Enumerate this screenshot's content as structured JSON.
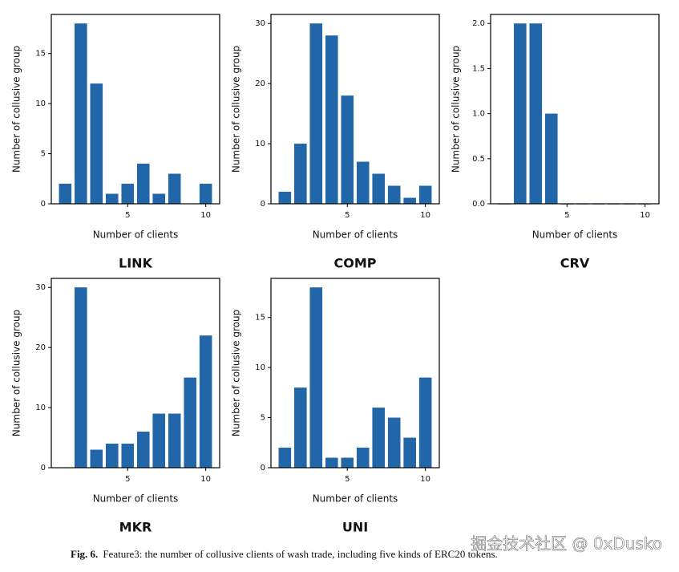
{
  "chart_data": [
    {
      "type": "bar",
      "title": "LINK",
      "xlabel": "Number of clients",
      "ylabel": "Number of collusive group",
      "color": "#2066a8",
      "x": [
        1,
        2,
        3,
        4,
        5,
        6,
        7,
        8,
        10
      ],
      "values": [
        2,
        18,
        12,
        1,
        2,
        4,
        1,
        3,
        2
      ],
      "xlim": [
        0.11,
        10.89
      ],
      "xticks": [
        5,
        10
      ],
      "ylim": [
        0,
        18.9
      ],
      "yticks": [
        0,
        5,
        10,
        15
      ]
    },
    {
      "type": "bar",
      "title": "COMP",
      "xlabel": "Number of clients",
      "ylabel": "Number of collusive group",
      "color": "#2066a8",
      "x": [
        1,
        2,
        3,
        4,
        5,
        6,
        7,
        8,
        9,
        10
      ],
      "values": [
        2,
        10,
        30,
        28,
        18,
        7,
        5,
        3,
        1,
        3
      ],
      "xlim": [
        0.11,
        10.89
      ],
      "xticks": [
        5,
        10
      ],
      "ylim": [
        0,
        31.5
      ],
      "yticks": [
        0,
        10,
        20,
        30
      ]
    },
    {
      "type": "bar",
      "title": "CRV",
      "xlabel": "Number of clients",
      "ylabel": "Number of collusive group",
      "color": "#2066a8",
      "x": [
        1,
        2,
        3,
        4,
        5,
        6,
        7,
        8,
        9,
        10
      ],
      "values": [
        0,
        2,
        2,
        1,
        0,
        0,
        0,
        0,
        0,
        0
      ],
      "xlim": [
        0.11,
        10.89
      ],
      "xticks": [
        5,
        10
      ],
      "ylim": [
        0,
        2.1
      ],
      "yticks": [
        {
          "value": 0,
          "label": "0.0"
        },
        {
          "value": 0.5,
          "label": "0.5"
        },
        {
          "value": 1,
          "label": "1.0"
        },
        {
          "value": 1.5,
          "label": "1.5"
        },
        {
          "value": 2,
          "label": "2.0"
        }
      ]
    },
    {
      "type": "bar",
      "title": "MKR",
      "xlabel": "Number of clients",
      "ylabel": "Number of collusive group",
      "color": "#2066a8",
      "x": [
        2,
        3,
        4,
        5,
        6,
        7,
        8,
        9,
        10
      ],
      "values": [
        30,
        3,
        4,
        4,
        6,
        9,
        9,
        15,
        22
      ],
      "xlim": [
        0.11,
        10.89
      ],
      "xticks": [
        5,
        10
      ],
      "ylim": [
        0,
        31.5
      ],
      "yticks": [
        0,
        10,
        20,
        30
      ]
    },
    {
      "type": "bar",
      "title": "UNI",
      "xlabel": "Number of clients",
      "ylabel": "Number of collusive group",
      "color": "#2066a8",
      "x": [
        1,
        2,
        3,
        4,
        5,
        6,
        7,
        8,
        9,
        10
      ],
      "values": [
        2,
        8,
        18,
        1,
        1,
        2,
        6,
        5,
        3,
        9
      ],
      "xlim": [
        0.11,
        10.89
      ],
      "xticks": [
        5,
        10
      ],
      "ylim": [
        0,
        18.9
      ],
      "yticks": [
        0,
        5,
        10,
        15
      ]
    }
  ],
  "caption_label": "Fig. 6.",
  "caption": "Feature3: the number of collusive clients of wash trade, including five kinds of ERC20 tokens.",
  "watermark": "掘金技术社区 @ 0xDusko"
}
